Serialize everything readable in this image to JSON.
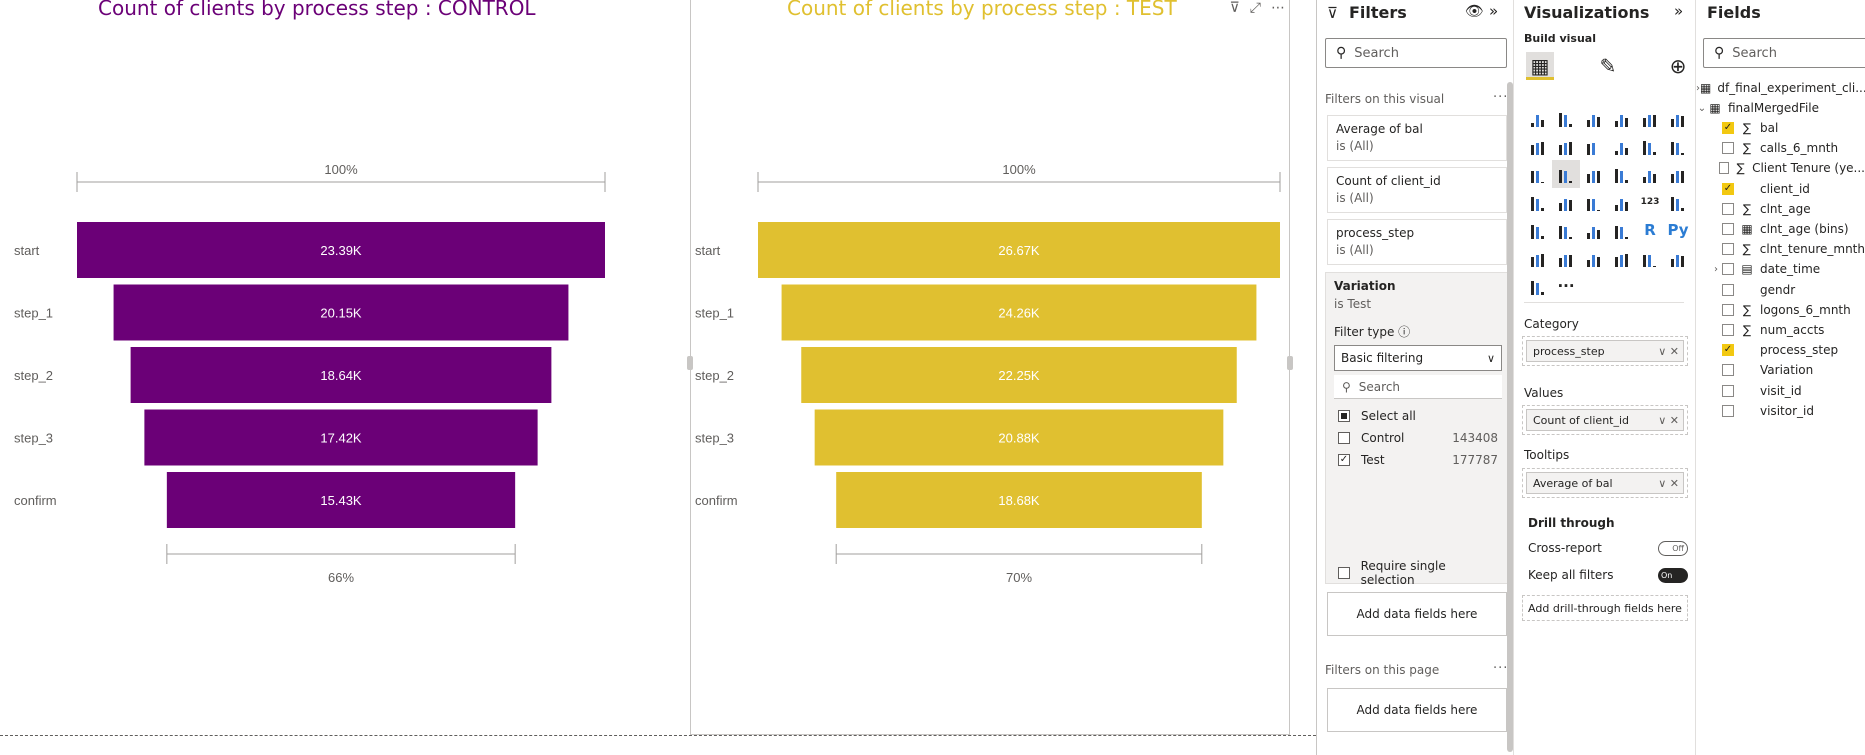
{
  "colors": {
    "control": "#6b0077",
    "test": "#e0c030",
    "accent": "#f2c811"
  },
  "visuals": {
    "control": {
      "title": "Count of clients by process step : CONTROL",
      "top_pct": "100%",
      "bottom_pct": "66%"
    },
    "test": {
      "title": "Count of clients by process step : TEST",
      "top_pct": "100%",
      "bottom_pct": "70%"
    }
  },
  "chart_data": [
    {
      "type": "funnel",
      "title": "Count of clients by process step : CONTROL",
      "categories": [
        "start",
        "step_1",
        "step_2",
        "step_3",
        "confirm"
      ],
      "values": [
        23390,
        20150,
        18640,
        17420,
        15430
      ],
      "labels": [
        "23.39K",
        "20.15K",
        "18.64K",
        "17.42K",
        "15.43K"
      ],
      "color": "#6b0077",
      "top_label": "100%",
      "bottom_label": "66%"
    },
    {
      "type": "funnel",
      "title": "Count of clients by process step : TEST",
      "categories": [
        "start",
        "step_1",
        "step_2",
        "step_3",
        "confirm"
      ],
      "values": [
        26670,
        24260,
        22250,
        20880,
        18680
      ],
      "labels": [
        "26.67K",
        "24.26K",
        "22.25K",
        "20.88K",
        "18.68K"
      ],
      "color": "#e0c030",
      "top_label": "100%",
      "bottom_label": "70%"
    }
  ],
  "filters": {
    "title": "Filters",
    "search_placeholder": "Search",
    "on_visual_label": "Filters on this visual",
    "cards": [
      {
        "title": "Average of bal",
        "sub": "is (All)"
      },
      {
        "title": "Count of client_id",
        "sub": "is (All)"
      },
      {
        "title": "process_step",
        "sub": "is (All)"
      }
    ],
    "variation": {
      "title": "Variation",
      "sub": "is Test",
      "filter_type_label": "Filter type",
      "filter_type_value": "Basic filtering",
      "search_placeholder": "Search",
      "options": [
        {
          "label": "Select all",
          "count": ""
        },
        {
          "label": "Control",
          "count": "143408"
        },
        {
          "label": "Test",
          "count": "177787"
        }
      ],
      "require_single": "Require single selection"
    },
    "add_fields": "Add data fields here",
    "on_page_label": "Filters on this page",
    "add_fields_page": "Add data fields here"
  },
  "visualizations": {
    "title": "Visualizations",
    "build_label": "Build visual",
    "category_label": "Category",
    "category_field": "process_step",
    "values_label": "Values",
    "values_field": "Count of client_id",
    "tooltips_label": "Tooltips",
    "tooltips_field": "Average of bal",
    "drill_title": "Drill through",
    "cross_report": "Cross-report",
    "cross_report_state": "Off",
    "keep_all": "Keep all filters",
    "keep_all_state": "On",
    "drill_add": "Add drill-through fields here"
  },
  "fields": {
    "title": "Fields",
    "search_placeholder": "Search",
    "tables": [
      {
        "name": "df_final_experiment_cli...",
        "expanded": false
      },
      {
        "name": "finalMergedFile",
        "expanded": true
      }
    ],
    "items": [
      {
        "name": "bal",
        "icon": "sigma",
        "checked": true
      },
      {
        "name": "calls_6_mnth",
        "icon": "sigma",
        "checked": false
      },
      {
        "name": "Client Tenure (ye...",
        "icon": "sigma",
        "checked": false
      },
      {
        "name": "client_id",
        "icon": "none",
        "checked": true
      },
      {
        "name": "clnt_age",
        "icon": "sigma",
        "checked": false
      },
      {
        "name": "clnt_age (bins)",
        "icon": "bins",
        "checked": false
      },
      {
        "name": "clnt_tenure_mnth",
        "icon": "sigma",
        "checked": false
      },
      {
        "name": "date_time",
        "icon": "calendar",
        "checked": false
      },
      {
        "name": "gendr",
        "icon": "none",
        "checked": false
      },
      {
        "name": "logons_6_mnth",
        "icon": "sigma",
        "checked": false
      },
      {
        "name": "num_accts",
        "icon": "sigma",
        "checked": false
      },
      {
        "name": "process_step",
        "icon": "none",
        "checked": true
      },
      {
        "name": "Variation",
        "icon": "none",
        "checked": false
      },
      {
        "name": "visit_id",
        "icon": "none",
        "checked": false
      },
      {
        "name": "visitor_id",
        "icon": "none",
        "checked": false
      }
    ]
  }
}
